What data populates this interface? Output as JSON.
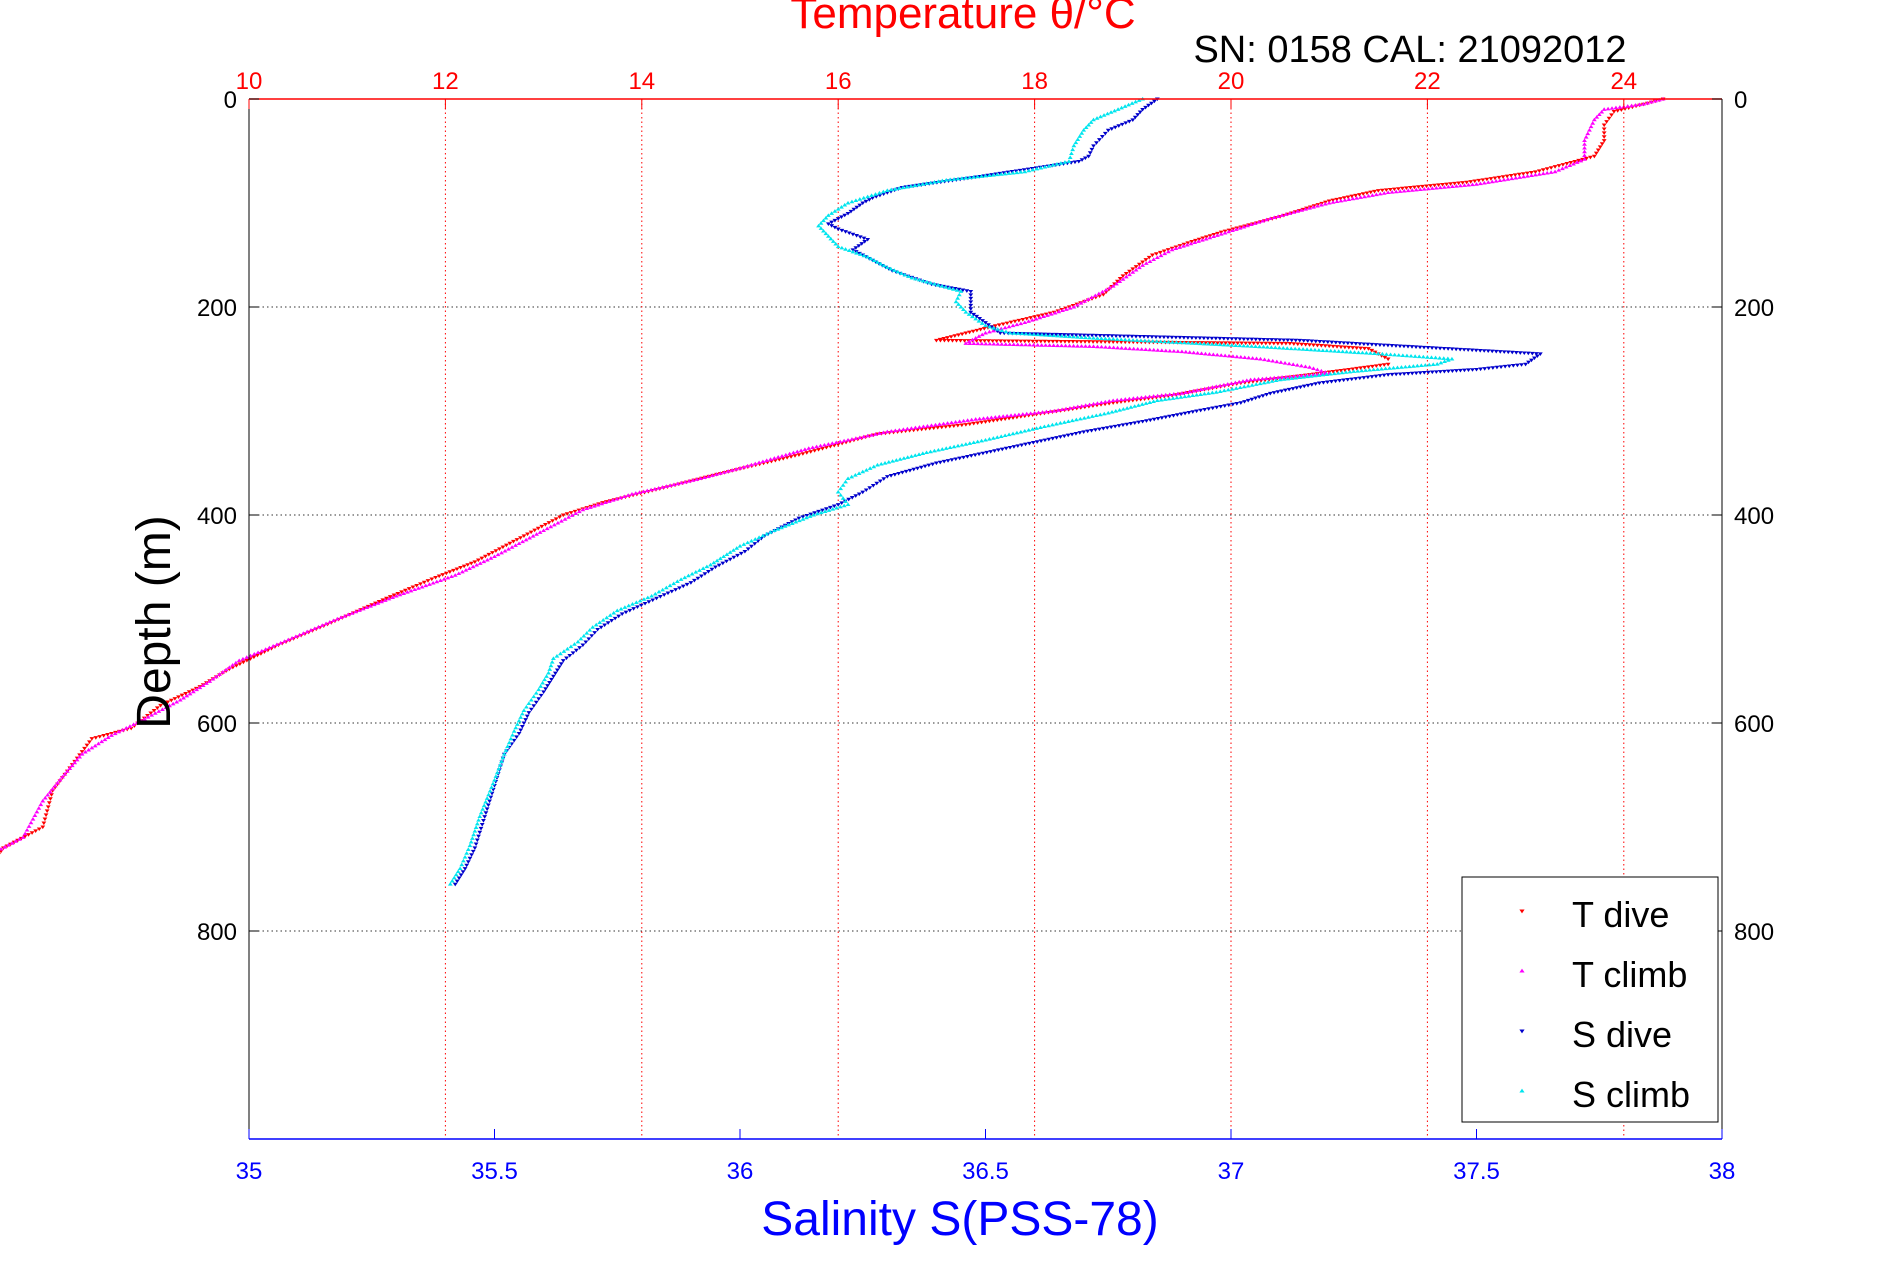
{
  "chart_data": {
    "type": "scatter",
    "title": "Temperature θ/°C",
    "subtitle": "SN: 0158  CAL: 21092012",
    "ylabel": "Depth (m)",
    "xlabel": "Salinity S(PSS-78)",
    "colors": {
      "temperature_axis": "#ff0000",
      "salinity_axis": "#0000ff",
      "T dive": "#ff0000",
      "T climb": "#ff00ff",
      "S dive": "#0000cc",
      "S climb": "#00e5ee"
    },
    "y_axis": {
      "range": [
        0,
        1000
      ],
      "reversed": true,
      "ticks": [
        "0",
        "200",
        "400",
        "600",
        "800"
      ],
      "tick_values": [
        0,
        200,
        400,
        600,
        800
      ]
    },
    "temperature_axis": {
      "position": "top",
      "range": [
        10,
        25
      ],
      "ticks": [
        "10",
        "12",
        "14",
        "16",
        "18",
        "20",
        "22",
        "24"
      ],
      "tick_values": [
        10,
        12,
        14,
        16,
        18,
        20,
        22,
        24
      ],
      "grid": true
    },
    "salinity_axis": {
      "position": "bottom",
      "range": [
        35,
        38
      ],
      "ticks": [
        "35",
        "35.5",
        "36",
        "36.5",
        "37",
        "37.5",
        "38"
      ],
      "tick_values": [
        35,
        35.5,
        36,
        36.5,
        37,
        37.5,
        38
      ],
      "grid": false
    },
    "legend": {
      "placement": "bottom-right",
      "entries": [
        "T dive",
        "T climb",
        "S dive",
        "S climb"
      ]
    },
    "series": [
      {
        "name": "T dive",
        "axis": "temperature",
        "marker": "down-triangle",
        "points": [
          [
            24.4,
            0
          ],
          [
            24.2,
            5
          ],
          [
            23.9,
            12
          ],
          [
            23.8,
            25
          ],
          [
            23.8,
            40
          ],
          [
            23.7,
            55
          ],
          [
            23.1,
            70
          ],
          [
            22.4,
            80
          ],
          [
            21.5,
            88
          ],
          [
            21.0,
            98
          ],
          [
            20.5,
            113
          ],
          [
            19.9,
            128
          ],
          [
            19.6,
            137
          ],
          [
            19.2,
            150
          ],
          [
            18.9,
            170
          ],
          [
            18.7,
            188
          ],
          [
            18.2,
            205
          ],
          [
            17.6,
            218
          ],
          [
            17.3,
            225
          ],
          [
            17.0,
            232
          ],
          [
            20.6,
            235
          ],
          [
            21.4,
            240
          ],
          [
            21.6,
            250
          ],
          [
            21.6,
            255
          ],
          [
            20.8,
            265
          ],
          [
            20.1,
            273
          ],
          [
            19.4,
            285
          ],
          [
            18.8,
            292
          ],
          [
            18.1,
            302
          ],
          [
            17.3,
            313
          ],
          [
            16.4,
            322
          ],
          [
            15.6,
            342
          ],
          [
            14.8,
            360
          ],
          [
            14.3,
            372
          ],
          [
            13.6,
            388
          ],
          [
            13.2,
            400
          ],
          [
            12.8,
            420
          ],
          [
            12.3,
            445
          ],
          [
            11.9,
            460
          ],
          [
            11.4,
            480
          ],
          [
            10.8,
            505
          ],
          [
            10.3,
            525
          ],
          [
            9.8,
            548
          ],
          [
            9.5,
            565
          ],
          [
            9.1,
            583
          ],
          [
            8.8,
            605
          ],
          [
            8.4,
            615
          ],
          [
            8.2,
            640
          ],
          [
            8.0,
            665
          ],
          [
            7.9,
            700
          ],
          [
            7.5,
            720
          ],
          [
            7.3,
            745
          ],
          [
            7.1,
            755
          ]
        ]
      },
      {
        "name": "T climb",
        "axis": "temperature",
        "marker": "up-triangle",
        "points": [
          [
            24.4,
            0
          ],
          [
            24.2,
            5
          ],
          [
            23.8,
            10
          ],
          [
            23.7,
            20
          ],
          [
            23.6,
            40
          ],
          [
            23.6,
            58
          ],
          [
            23.3,
            70
          ],
          [
            22.5,
            82
          ],
          [
            21.6,
            90
          ],
          [
            21.0,
            100
          ],
          [
            20.4,
            115
          ],
          [
            19.9,
            130
          ],
          [
            19.4,
            145
          ],
          [
            19.1,
            160
          ],
          [
            18.8,
            180
          ],
          [
            18.4,
            200
          ],
          [
            17.9,
            215
          ],
          [
            17.5,
            225
          ],
          [
            17.3,
            235
          ],
          [
            18.6,
            238
          ],
          [
            19.5,
            243
          ],
          [
            20.3,
            250
          ],
          [
            20.8,
            258
          ],
          [
            21.0,
            264
          ],
          [
            20.2,
            270
          ],
          [
            19.5,
            283
          ],
          [
            18.8,
            290
          ],
          [
            18.2,
            300
          ],
          [
            17.4,
            308
          ],
          [
            16.5,
            320
          ],
          [
            15.7,
            336
          ],
          [
            15.0,
            355
          ],
          [
            14.6,
            365
          ],
          [
            13.9,
            380
          ],
          [
            13.4,
            395
          ],
          [
            13.0,
            415
          ],
          [
            12.5,
            440
          ],
          [
            12.1,
            458
          ],
          [
            11.5,
            478
          ],
          [
            10.9,
            500
          ],
          [
            10.4,
            520
          ],
          [
            9.9,
            540
          ],
          [
            9.6,
            560
          ],
          [
            9.3,
            578
          ],
          [
            8.9,
            598
          ],
          [
            8.6,
            612
          ],
          [
            8.3,
            630
          ],
          [
            8.1,
            652
          ],
          [
            7.9,
            675
          ],
          [
            7.7,
            710
          ],
          [
            7.4,
            725
          ],
          [
            7.2,
            745
          ],
          [
            7.0,
            755
          ]
        ]
      },
      {
        "name": "S dive",
        "axis": "salinity",
        "marker": "down-triangle",
        "points": [
          [
            36.85,
            0
          ],
          [
            36.82,
            10
          ],
          [
            36.8,
            20
          ],
          [
            36.75,
            30
          ],
          [
            36.72,
            45
          ],
          [
            36.71,
            55
          ],
          [
            36.69,
            60
          ],
          [
            36.62,
            65
          ],
          [
            36.48,
            75
          ],
          [
            36.33,
            85
          ],
          [
            36.27,
            95
          ],
          [
            36.25,
            100
          ],
          [
            36.22,
            110
          ],
          [
            36.18,
            120
          ],
          [
            36.2,
            125
          ],
          [
            36.26,
            135
          ],
          [
            36.23,
            145
          ],
          [
            36.27,
            155
          ],
          [
            36.31,
            165
          ],
          [
            36.39,
            178
          ],
          [
            36.47,
            185
          ],
          [
            36.47,
            195
          ],
          [
            36.47,
            205
          ],
          [
            36.5,
            215
          ],
          [
            36.53,
            225
          ],
          [
            37.14,
            232
          ],
          [
            37.63,
            245
          ],
          [
            37.6,
            255
          ],
          [
            37.5,
            260
          ],
          [
            37.32,
            265
          ],
          [
            37.18,
            273
          ],
          [
            37.08,
            283
          ],
          [
            37.02,
            292
          ],
          [
            36.93,
            300
          ],
          [
            36.82,
            310
          ],
          [
            36.7,
            320
          ],
          [
            36.55,
            335
          ],
          [
            36.4,
            350
          ],
          [
            36.3,
            363
          ],
          [
            36.25,
            378
          ],
          [
            36.2,
            390
          ],
          [
            36.12,
            403
          ],
          [
            36.05,
            420
          ],
          [
            36.01,
            435
          ],
          [
            35.95,
            450
          ],
          [
            35.9,
            465
          ],
          [
            35.83,
            480
          ],
          [
            35.76,
            495
          ],
          [
            35.71,
            510
          ],
          [
            35.68,
            525
          ],
          [
            35.64,
            540
          ],
          [
            35.62,
            555
          ],
          [
            35.6,
            570
          ],
          [
            35.57,
            590
          ],
          [
            35.55,
            610
          ],
          [
            35.52,
            630
          ],
          [
            35.5,
            660
          ],
          [
            35.48,
            690
          ],
          [
            35.46,
            720
          ],
          [
            35.44,
            740
          ],
          [
            35.42,
            755
          ]
        ]
      },
      {
        "name": "S climb",
        "axis": "salinity",
        "marker": "up-triangle",
        "points": [
          [
            36.82,
            0
          ],
          [
            36.77,
            10
          ],
          [
            36.72,
            20
          ],
          [
            36.7,
            30
          ],
          [
            36.68,
            45
          ],
          [
            36.67,
            60
          ],
          [
            36.58,
            70
          ],
          [
            36.42,
            78
          ],
          [
            36.3,
            88
          ],
          [
            36.22,
            100
          ],
          [
            36.18,
            112
          ],
          [
            36.16,
            122
          ],
          [
            36.18,
            132
          ],
          [
            36.2,
            142
          ],
          [
            36.26,
            152
          ],
          [
            36.3,
            162
          ],
          [
            36.35,
            172
          ],
          [
            36.45,
            185
          ],
          [
            36.44,
            195
          ],
          [
            36.46,
            205
          ],
          [
            36.5,
            218
          ],
          [
            36.55,
            225
          ],
          [
            36.72,
            230
          ],
          [
            37.05,
            238
          ],
          [
            37.3,
            245
          ],
          [
            37.45,
            250
          ],
          [
            37.42,
            255
          ],
          [
            37.25,
            262
          ],
          [
            37.1,
            270
          ],
          [
            36.97,
            282
          ],
          [
            36.85,
            290
          ],
          [
            36.75,
            302
          ],
          [
            36.62,
            315
          ],
          [
            36.5,
            328
          ],
          [
            36.38,
            340
          ],
          [
            36.28,
            352
          ],
          [
            36.22,
            365
          ],
          [
            36.2,
            378
          ],
          [
            36.22,
            390
          ],
          [
            36.15,
            400
          ],
          [
            36.07,
            415
          ],
          [
            36.0,
            430
          ],
          [
            35.94,
            448
          ],
          [
            35.88,
            462
          ],
          [
            35.82,
            478
          ],
          [
            35.75,
            492
          ],
          [
            35.7,
            508
          ],
          [
            35.67,
            522
          ],
          [
            35.62,
            538
          ],
          [
            35.61,
            552
          ],
          [
            35.59,
            568
          ],
          [
            35.56,
            588
          ],
          [
            35.54,
            608
          ],
          [
            35.52,
            630
          ],
          [
            35.5,
            655
          ],
          [
            35.47,
            690
          ],
          [
            35.45,
            718
          ],
          [
            35.43,
            740
          ],
          [
            35.41,
            755
          ]
        ]
      }
    ]
  }
}
